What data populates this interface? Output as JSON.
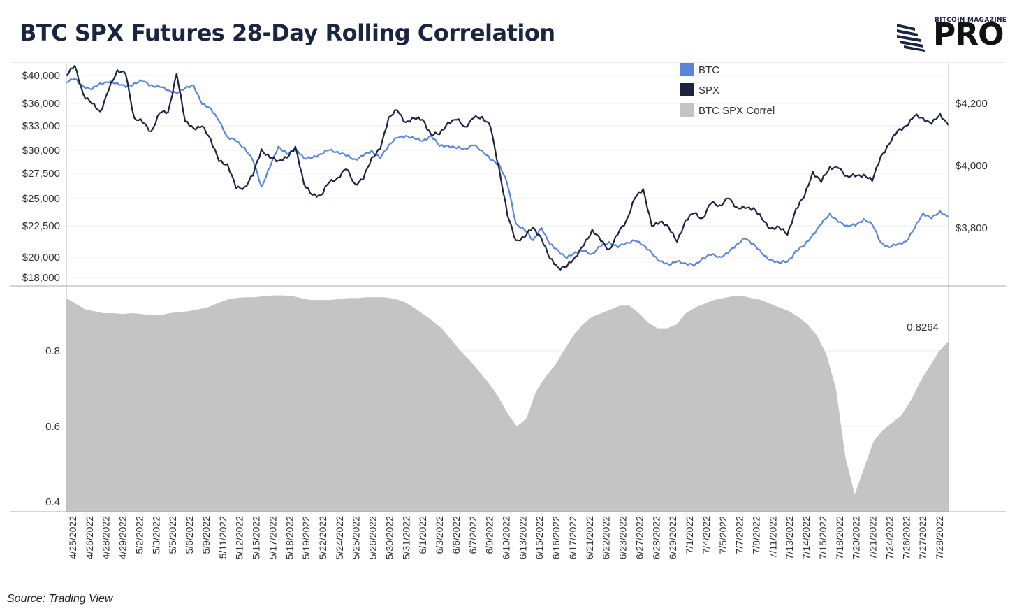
{
  "title": "BTC SPX Futures 28-Day Rolling Correlation",
  "logo": {
    "top_text": "BITCOIN MAGAZINE",
    "main_text": "PRO"
  },
  "source": "Source: Trading View",
  "colors": {
    "btc": "#5b86d8",
    "spx": "#1b2440",
    "correl": "#c4c4c4",
    "title": "#1b2440"
  },
  "chart_data": [
    {
      "type": "line",
      "legend": [
        "BTC",
        "SPX",
        "BTC SPX Correl"
      ],
      "legend_position": "top-center",
      "y_left_ticks": [
        "$40,000",
        "$36,000",
        "$33,000",
        "$30,000",
        "$27,500",
        "$25,000",
        "$22,500",
        "$20,000",
        "$18,000"
      ],
      "y_left_tick_values": [
        40000,
        36000,
        33000,
        30000,
        27500,
        25000,
        22500,
        20000,
        18000
      ],
      "y_right_ticks": [
        "$4,200",
        "$4,000",
        "$3,800"
      ],
      "y_right_tick_values": [
        4200,
        4000,
        3800
      ],
      "series": [
        {
          "name": "BTC",
          "axis": "left",
          "values": [
            39000,
            39500,
            38500,
            38000,
            38800,
            39200,
            38700,
            38500,
            38800,
            39200,
            38600,
            38400,
            37800,
            37600,
            38100,
            38600,
            36000,
            35200,
            33800,
            31500,
            31200,
            30300,
            28900,
            26100,
            28300,
            30300,
            29700,
            30100,
            29100,
            29300,
            29500,
            30100,
            29800,
            29400,
            29000,
            29500,
            29800,
            29300,
            30500,
            31600,
            31800,
            31400,
            31200,
            31800,
            30500,
            30600,
            30300,
            30100,
            30800,
            29800,
            29100,
            28500,
            26400,
            22700,
            22200,
            21300,
            22400,
            21000,
            20500,
            20000,
            20300,
            20600,
            20200,
            20900,
            21200,
            20800,
            21100,
            21400,
            20900,
            20400,
            19600,
            19200,
            19700,
            19300,
            19200,
            19900,
            20200,
            20000,
            20400,
            20900,
            21600,
            21000,
            20300,
            19800,
            19400,
            19600,
            20500,
            20900,
            21800,
            22700,
            23500,
            23000,
            22400,
            22600,
            23100,
            22600,
            21200,
            20800,
            21000,
            21300,
            22300,
            23600,
            23300,
            23700,
            23300
          ]
        },
        {
          "name": "SPX",
          "axis": "right",
          "values": [
            4290,
            4320,
            4230,
            4200,
            4170,
            4250,
            4300,
            4300,
            4150,
            4140,
            4110,
            4170,
            4170,
            4300,
            4140,
            4120,
            4130,
            4080,
            4020,
            4000,
            3930,
            3930,
            3970,
            4050,
            4030,
            4010,
            4030,
            4060,
            3940,
            3910,
            3900,
            3950,
            3960,
            3990,
            3940,
            3960,
            4020,
            4060,
            4150,
            4180,
            4140,
            4150,
            4150,
            4100,
            4100,
            4140,
            4150,
            4120,
            4160,
            4150,
            4130,
            3990,
            3840,
            3760,
            3770,
            3800,
            3770,
            3700,
            3670,
            3680,
            3700,
            3750,
            3790,
            3760,
            3730,
            3780,
            3820,
            3900,
            3920,
            3810,
            3820,
            3800,
            3760,
            3820,
            3850,
            3830,
            3880,
            3870,
            3900,
            3860,
            3870,
            3860,
            3830,
            3800,
            3800,
            3780,
            3860,
            3900,
            3980,
            3950,
            3990,
            4000,
            3960,
            3970,
            3970,
            3950,
            4030,
            4070,
            4110,
            4130,
            4160,
            4150,
            4140,
            4160,
            4130
          ]
        },
        {
          "name": "BTC SPX Correl",
          "type": "area",
          "values": [
            0.94,
            0.925,
            0.91,
            0.905,
            0.9,
            0.9,
            0.898,
            0.9,
            0.898,
            0.895,
            0.895,
            0.9,
            0.903,
            0.905,
            0.91,
            0.915,
            0.925,
            0.935,
            0.94,
            0.942,
            0.942,
            0.945,
            0.947,
            0.947,
            0.946,
            0.94,
            0.935,
            0.935,
            0.935,
            0.937,
            0.94,
            0.94,
            0.942,
            0.942,
            0.942,
            0.938,
            0.93,
            0.915,
            0.898,
            0.88,
            0.86,
            0.83,
            0.8,
            0.775,
            0.745,
            0.715,
            0.68,
            0.635,
            0.6,
            0.62,
            0.69,
            0.73,
            0.76,
            0.8,
            0.84,
            0.87,
            0.89,
            0.9,
            0.91,
            0.92,
            0.92,
            0.9,
            0.875,
            0.86,
            0.86,
            0.87,
            0.9,
            0.915,
            0.925,
            0.935,
            0.94,
            0.945,
            0.946,
            0.94,
            0.935,
            0.925,
            0.915,
            0.905,
            0.89,
            0.87,
            0.84,
            0.79,
            0.7,
            0.52,
            0.42,
            0.49,
            0.56,
            0.59,
            0.61,
            0.63,
            0.67,
            0.72,
            0.76,
            0.8,
            0.826
          ]
        }
      ]
    },
    {
      "type": "area",
      "y_ticks": [
        "0.8",
        "0.6",
        "0.4"
      ],
      "y_tick_values": [
        0.8,
        0.6,
        0.4
      ],
      "last_value_label": "0.8264",
      "x_labels": [
        "4/25/2022",
        "4/26/2022",
        "4/28/2022",
        "4/29/2022",
        "5/2/2022",
        "5/3/2022",
        "5/5/2022",
        "5/6/2022",
        "5/9/2022",
        "5/11/2022",
        "5/12/2022",
        "5/15/2022",
        "5/17/2022",
        "5/18/2022",
        "5/19/2022",
        "5/22/2022",
        "5/24/2022",
        "5/25/2022",
        "5/26/2022",
        "5/30/2022",
        "5/31/2022",
        "6/1/2022",
        "6/3/2022",
        "6/6/2022",
        "6/7/2022",
        "6/9/2022",
        "6/10/2022",
        "6/13/2022",
        "6/15/2022",
        "6/16/2022",
        "6/17/2022",
        "6/21/2022",
        "6/22/2022",
        "6/23/2022",
        "6/27/2022",
        "6/28/2022",
        "6/29/2022",
        "7/1/2022",
        "7/4/2022",
        "7/5/2022",
        "7/7/2022",
        "7/8/2022",
        "7/11/2022",
        "7/13/2022",
        "7/14/2022",
        "7/15/2022",
        "7/18/2022",
        "7/20/2022",
        "7/21/2022",
        "7/24/2022",
        "7/26/2022",
        "7/27/2022",
        "7/28/2022"
      ]
    }
  ]
}
